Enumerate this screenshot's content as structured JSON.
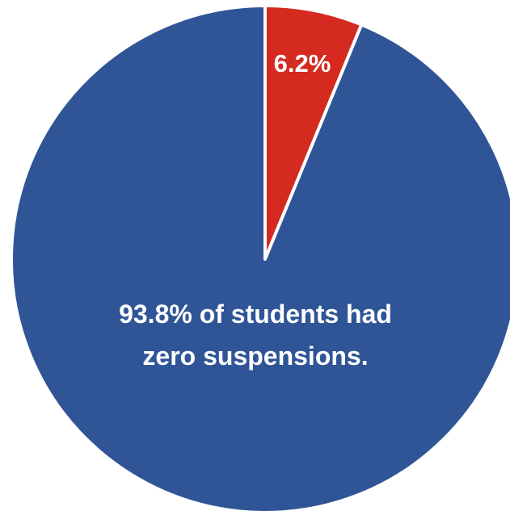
{
  "chart_data": {
    "type": "pie",
    "title": "",
    "start_angle_deg": 0,
    "direction": "clockwise",
    "legend": "none",
    "slices": [
      {
        "value": 6.2,
        "color": "#d42a1f",
        "data_label": "6.2%"
      },
      {
        "value": 93.8,
        "color": "#2f5597",
        "data_label": "93.8% of students had zero suspensions."
      }
    ],
    "label_lines": {
      "small_slice": [
        "6.2%"
      ],
      "large_slice": [
        "93.8% of students had",
        "zero suspensions."
      ]
    }
  }
}
